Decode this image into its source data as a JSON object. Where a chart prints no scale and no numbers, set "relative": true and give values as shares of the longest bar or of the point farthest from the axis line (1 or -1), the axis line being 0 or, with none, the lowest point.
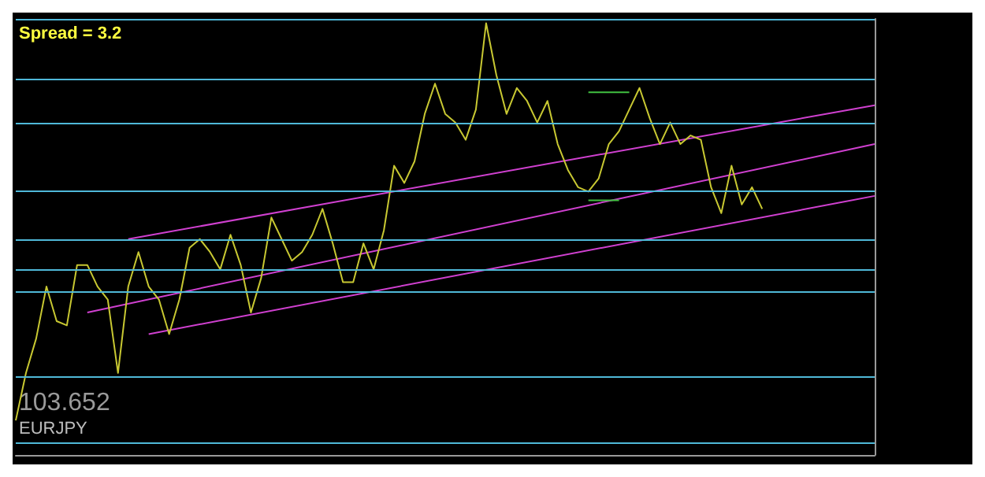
{
  "chart_data": {
    "type": "line",
    "relative": true,
    "tick_labels": false,
    "grid": false,
    "annotations": [
      "Spread = 3.2",
      "103.652",
      "EURJPY"
    ],
    "categories": [
      null,
      null,
      null,
      null,
      null,
      null,
      null,
      null,
      null,
      null,
      null,
      null,
      null,
      null,
      null,
      null,
      null,
      null,
      null,
      null,
      null,
      null,
      null,
      null,
      null,
      null,
      null,
      null,
      null,
      null,
      null,
      null,
      null,
      null,
      null,
      null,
      null,
      null,
      null,
      null,
      null,
      null,
      null,
      null,
      null,
      null,
      null,
      null,
      null,
      null,
      null,
      null,
      null,
      null,
      null,
      null,
      null,
      null,
      null,
      null,
      null,
      null,
      null,
      null,
      null,
      null,
      null,
      null,
      null,
      null,
      null,
      null,
      null,
      null,
      null,
      null,
      null,
      null,
      null,
      null,
      null,
      null,
      null,
      null,
      null
    ],
    "series": [
      {
        "color": "#c8c832",
        "values": [
          0.08,
          0.19,
          0.27,
          0.39,
          0.31,
          0.3,
          0.44,
          0.44,
          0.39,
          0.36,
          0.19,
          0.39,
          0.47,
          0.39,
          0.36,
          0.28,
          0.36,
          0.48,
          0.5,
          0.47,
          0.43,
          0.51,
          0.44,
          0.33,
          0.41,
          0.55,
          0.5,
          0.45,
          0.47,
          0.51,
          0.57,
          0.49,
          0.4,
          0.4,
          0.49,
          0.43,
          0.52,
          0.67,
          0.63,
          0.68,
          0.79,
          0.86,
          0.79,
          0.77,
          0.73,
          0.8,
          1,
          0.88,
          0.79,
          0.85,
          0.82,
          0.77,
          0.82,
          0.72,
          0.66,
          0.62,
          0.61,
          0.64,
          0.72,
          0.75,
          0.8,
          0.85,
          0.78,
          0.72,
          0.77,
          0.72,
          0.74,
          0.73,
          0.62,
          0.56,
          0.67,
          0.58,
          0.62,
          0.57,
          null,
          null,
          null,
          null,
          null,
          null,
          null,
          null,
          null,
          null,
          null
        ]
      },
      {
        "color": "#d040d0",
        "values": [
          null,
          null,
          null,
          null,
          null,
          null,
          null,
          null,
          null,
          null,
          null,
          0.5,
          null,
          null,
          null,
          null,
          null,
          null,
          null,
          null,
          null,
          null,
          null,
          null,
          null,
          null,
          null,
          null,
          null,
          null,
          null,
          null,
          null,
          null,
          null,
          null,
          null,
          null,
          null,
          null,
          null,
          null,
          null,
          null,
          null,
          null,
          null,
          null,
          null,
          null,
          null,
          null,
          null,
          null,
          null,
          null,
          null,
          null,
          null,
          null,
          null,
          null,
          null,
          null,
          null,
          null,
          null,
          null,
          null,
          null,
          null,
          null,
          null,
          null,
          null,
          null,
          null,
          null,
          null,
          null,
          null,
          null,
          null,
          null,
          0.81
        ]
      },
      {
        "color": "#d040d0",
        "values": [
          null,
          null,
          null,
          null,
          null,
          null,
          null,
          0.33,
          null,
          null,
          null,
          null,
          null,
          null,
          null,
          null,
          null,
          null,
          null,
          null,
          null,
          null,
          null,
          null,
          null,
          null,
          null,
          null,
          null,
          null,
          null,
          null,
          null,
          null,
          null,
          null,
          null,
          null,
          null,
          null,
          null,
          null,
          null,
          null,
          null,
          null,
          null,
          null,
          null,
          null,
          null,
          null,
          null,
          null,
          null,
          null,
          null,
          null,
          null,
          null,
          null,
          null,
          null,
          null,
          null,
          null,
          null,
          null,
          null,
          null,
          null,
          null,
          null,
          null,
          null,
          null,
          null,
          null,
          null,
          null,
          null,
          null,
          null,
          null,
          0.72
        ]
      },
      {
        "color": "#d040d0",
        "values": [
          null,
          null,
          null,
          null,
          null,
          null,
          null,
          null,
          null,
          null,
          null,
          null,
          null,
          0.28,
          null,
          null,
          null,
          null,
          null,
          null,
          null,
          null,
          null,
          null,
          null,
          null,
          null,
          null,
          null,
          null,
          null,
          null,
          null,
          null,
          null,
          null,
          null,
          null,
          null,
          null,
          null,
          null,
          null,
          null,
          null,
          null,
          null,
          null,
          null,
          null,
          null,
          null,
          null,
          null,
          null,
          null,
          null,
          null,
          null,
          null,
          null,
          null,
          null,
          null,
          null,
          null,
          null,
          null,
          null,
          null,
          null,
          null,
          null,
          null,
          null,
          null,
          null,
          null,
          null,
          null,
          null,
          null,
          null,
          null,
          0.6
        ]
      },
      {
        "color": "#40c040",
        "values": [
          null,
          null,
          null,
          null,
          null,
          null,
          null,
          null,
          null,
          null,
          null,
          null,
          null,
          null,
          null,
          null,
          null,
          null,
          null,
          null,
          null,
          null,
          null,
          null,
          null,
          null,
          null,
          null,
          null,
          null,
          null,
          null,
          null,
          null,
          null,
          null,
          null,
          null,
          null,
          null,
          null,
          null,
          null,
          null,
          null,
          null,
          null,
          null,
          null,
          null,
          null,
          null,
          null,
          null,
          null,
          null,
          0.84,
          0.84,
          0.84,
          0.84,
          0.84,
          null,
          null,
          null,
          null,
          null,
          null,
          null,
          null,
          null,
          null,
          null,
          null,
          null,
          null,
          null,
          null,
          null,
          null,
          null,
          null,
          null,
          null,
          null,
          null
        ]
      },
      {
        "color": "#40c040",
        "values": [
          null,
          null,
          null,
          null,
          null,
          null,
          null,
          null,
          null,
          null,
          null,
          null,
          null,
          null,
          null,
          null,
          null,
          null,
          null,
          null,
          null,
          null,
          null,
          null,
          null,
          null,
          null,
          null,
          null,
          null,
          null,
          null,
          null,
          null,
          null,
          null,
          null,
          null,
          null,
          null,
          null,
          null,
          null,
          null,
          null,
          null,
          null,
          null,
          null,
          null,
          null,
          null,
          null,
          null,
          null,
          null,
          0.59,
          0.59,
          0.59,
          0.59,
          null,
          null,
          null,
          null,
          null,
          null,
          null,
          null,
          null,
          null,
          null,
          null,
          null,
          null,
          null,
          null,
          null,
          null,
          null,
          null,
          null,
          null,
          null,
          null,
          null
        ]
      }
    ],
    "ref_lines": [
      {
        "axis": "y",
        "value": 1.01,
        "color": "#4fb8d8"
      },
      {
        "axis": "y",
        "value": 0.87,
        "color": "#4fb8d8"
      },
      {
        "axis": "y",
        "value": 0.77,
        "color": "#4fb8d8"
      },
      {
        "axis": "y",
        "value": 0.61,
        "color": "#4fb8d8"
      },
      {
        "axis": "y",
        "value": 0.5,
        "color": "#4fb8d8"
      },
      {
        "axis": "y",
        "value": 0.43,
        "color": "#4fb8d8"
      },
      {
        "axis": "y",
        "value": 0.38,
        "color": "#4fb8d8"
      },
      {
        "axis": "y",
        "value": 0.18,
        "color": "#4fb8d8"
      },
      {
        "axis": "y",
        "value": 0.03,
        "color": "#4fb8d8"
      }
    ]
  }
}
